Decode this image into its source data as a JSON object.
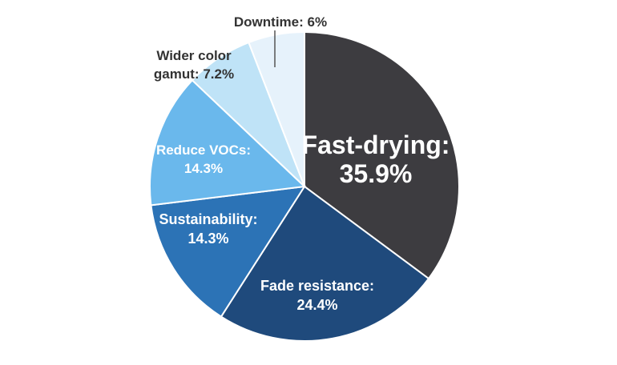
{
  "chart_data": {
    "type": "pie",
    "slices": [
      {
        "label": "Fast-drying:",
        "value": 35.9,
        "value_text": "35.9%",
        "color": "#3d3c40",
        "text_color": "#ffffff"
      },
      {
        "label": "Fade resistance:",
        "value": 24.4,
        "value_text": "24.4%",
        "color": "#1f4a7c",
        "text_color": "#ffffff"
      },
      {
        "label": "Sustainability:",
        "value": 14.3,
        "value_text": "14.3%",
        "color": "#2c73b6",
        "text_color": "#ffffff"
      },
      {
        "label": "Reduce VOCs:",
        "value": 14.3,
        "value_text": "14.3%",
        "color": "#6ab8ec",
        "text_color": "#ffffff"
      },
      {
        "label": "Wider color gamut:",
        "value": 7.2,
        "value_text": "7.2%",
        "color": "#bfe3f7",
        "text_color": "#333333"
      },
      {
        "label": "Downtime:",
        "value": 6,
        "value_text": "6%",
        "color": "#e6f2fb",
        "text_color": "#333333"
      }
    ],
    "start_angle": "12 o'clock",
    "direction": "clockwise",
    "slice_border_color": "#ffffff",
    "legend": "none"
  }
}
